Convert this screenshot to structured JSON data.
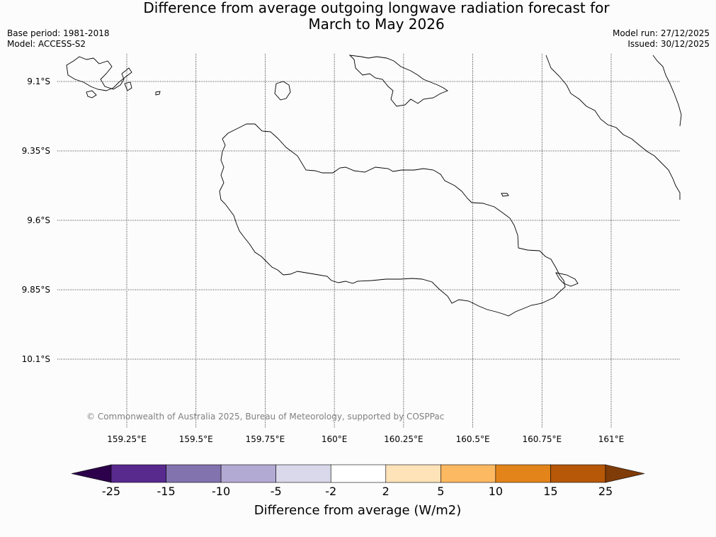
{
  "header": {
    "title_line1": "Difference from average outgoing longwave radiation forecast for",
    "title_line2": "March to May 2026",
    "base_period": "Base period: 1981-2018",
    "model": "Model: ACCESS-S2",
    "model_run": "Model run: 27/12/2025",
    "issued": "Issued: 30/12/2025"
  },
  "map": {
    "lat_labels": [
      "9.1°S",
      "9.35°S",
      "9.6°S",
      "9.85°S",
      "10.1°S"
    ],
    "lon_labels": [
      "159.25°E",
      "159.5°E",
      "159.75°E",
      "160°E",
      "160.25°E",
      "160.5°E",
      "160.75°E",
      "161°E"
    ],
    "lat_values": [
      -9.1,
      -9.35,
      -9.6,
      -9.85,
      -10.1
    ],
    "lon_values": [
      159.25,
      159.5,
      159.75,
      160.0,
      160.25,
      160.5,
      160.75,
      161.0
    ],
    "copyright": "© Commonwealth of Australia 2025, Bureau of Meteorology, supported by COSPPac"
  },
  "colorbar": {
    "title": "Difference from average (W/m2)",
    "tick_labels": [
      "-25",
      "-15",
      "-10",
      "-5",
      "-2",
      "2",
      "5",
      "10",
      "15",
      "25"
    ],
    "bins": [
      {
        "color": "#582a8e"
      },
      {
        "color": "#8272ae"
      },
      {
        "color": "#b3aad3"
      },
      {
        "color": "#d9d9eb"
      },
      {
        "color": "#ffffff"
      },
      {
        "color": "#fee2b8"
      },
      {
        "color": "#fdb862"
      },
      {
        "color": "#e3841a"
      },
      {
        "color": "#b65808"
      }
    ],
    "under_color": "#2d004b",
    "over_color": "#7f3b08"
  }
}
